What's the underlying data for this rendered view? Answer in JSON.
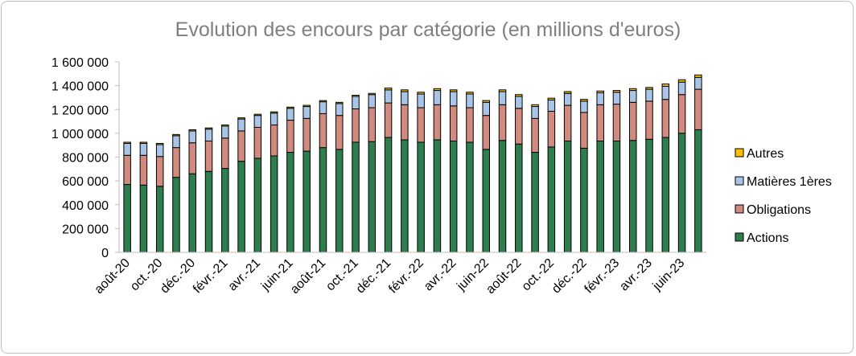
{
  "chart_data": {
    "type": "bar",
    "stacked": true,
    "title": "Evolution des encours par catégorie (en millions d'euros)",
    "xlabel": "",
    "ylabel": "",
    "ylim": [
      0,
      1600000
    ],
    "y_ticks": [
      "0",
      "200 000",
      "400 000",
      "600 000",
      "800 000",
      "1 000 000",
      "1 200 000",
      "1 400 000",
      "1 600 000"
    ],
    "grid": false,
    "legend_position": "right",
    "x_tick_labels": [
      "août-20",
      "oct.-20",
      "déc.-20",
      "févr.-21",
      "avr.-21",
      "juin-21",
      "août-21",
      "oct.-21",
      "déc.-21",
      "févr.-22",
      "avr.-22",
      "juin-22",
      "août-22",
      "oct.-22",
      "déc.-22",
      "févr.-23",
      "avr.-23",
      "juin-23"
    ],
    "series": [
      {
        "name": "Actions",
        "color": "#2e7d4f",
        "values": [
          570000,
          565000,
          555000,
          630000,
          660000,
          680000,
          705000,
          765000,
          790000,
          810000,
          840000,
          850000,
          880000,
          865000,
          925000,
          930000,
          965000,
          945000,
          925000,
          945000,
          935000,
          925000,
          865000,
          940000,
          910000,
          840000,
          885000,
          935000,
          875000,
          935000,
          935000,
          940000,
          950000,
          965000,
          1000000,
          1030000
        ]
      },
      {
        "name": "Obligations",
        "color": "#d08b7e",
        "values": [
          245000,
          250000,
          250000,
          250000,
          260000,
          255000,
          255000,
          255000,
          260000,
          260000,
          270000,
          275000,
          285000,
          285000,
          280000,
          285000,
          290000,
          295000,
          290000,
          295000,
          295000,
          290000,
          285000,
          300000,
          300000,
          285000,
          300000,
          300000,
          300000,
          305000,
          310000,
          320000,
          320000,
          320000,
          325000,
          340000
        ]
      },
      {
        "name": "Matières 1ères",
        "color": "#a8c4e6",
        "values": [
          100000,
          100000,
          100000,
          100000,
          100000,
          100000,
          100000,
          100000,
          100000,
          100000,
          100000,
          100000,
          100000,
          100000,
          105000,
          110000,
          110000,
          110000,
          115000,
          120000,
          120000,
          115000,
          110000,
          110000,
          100000,
          100000,
          95000,
          100000,
          95000,
          100000,
          100000,
          100000,
          100000,
          110000,
          105000,
          100000
        ]
      },
      {
        "name": "Autres",
        "color": "#ffc000",
        "values": [
          10000,
          10000,
          10000,
          10000,
          10000,
          10000,
          10000,
          10000,
          10000,
          10000,
          10000,
          10000,
          10000,
          10000,
          10000,
          10000,
          15000,
          15000,
          15000,
          15000,
          15000,
          15000,
          15000,
          15000,
          15000,
          15000,
          15000,
          15000,
          15000,
          15000,
          15000,
          15000,
          15000,
          20000,
          20000,
          20000
        ]
      }
    ]
  }
}
